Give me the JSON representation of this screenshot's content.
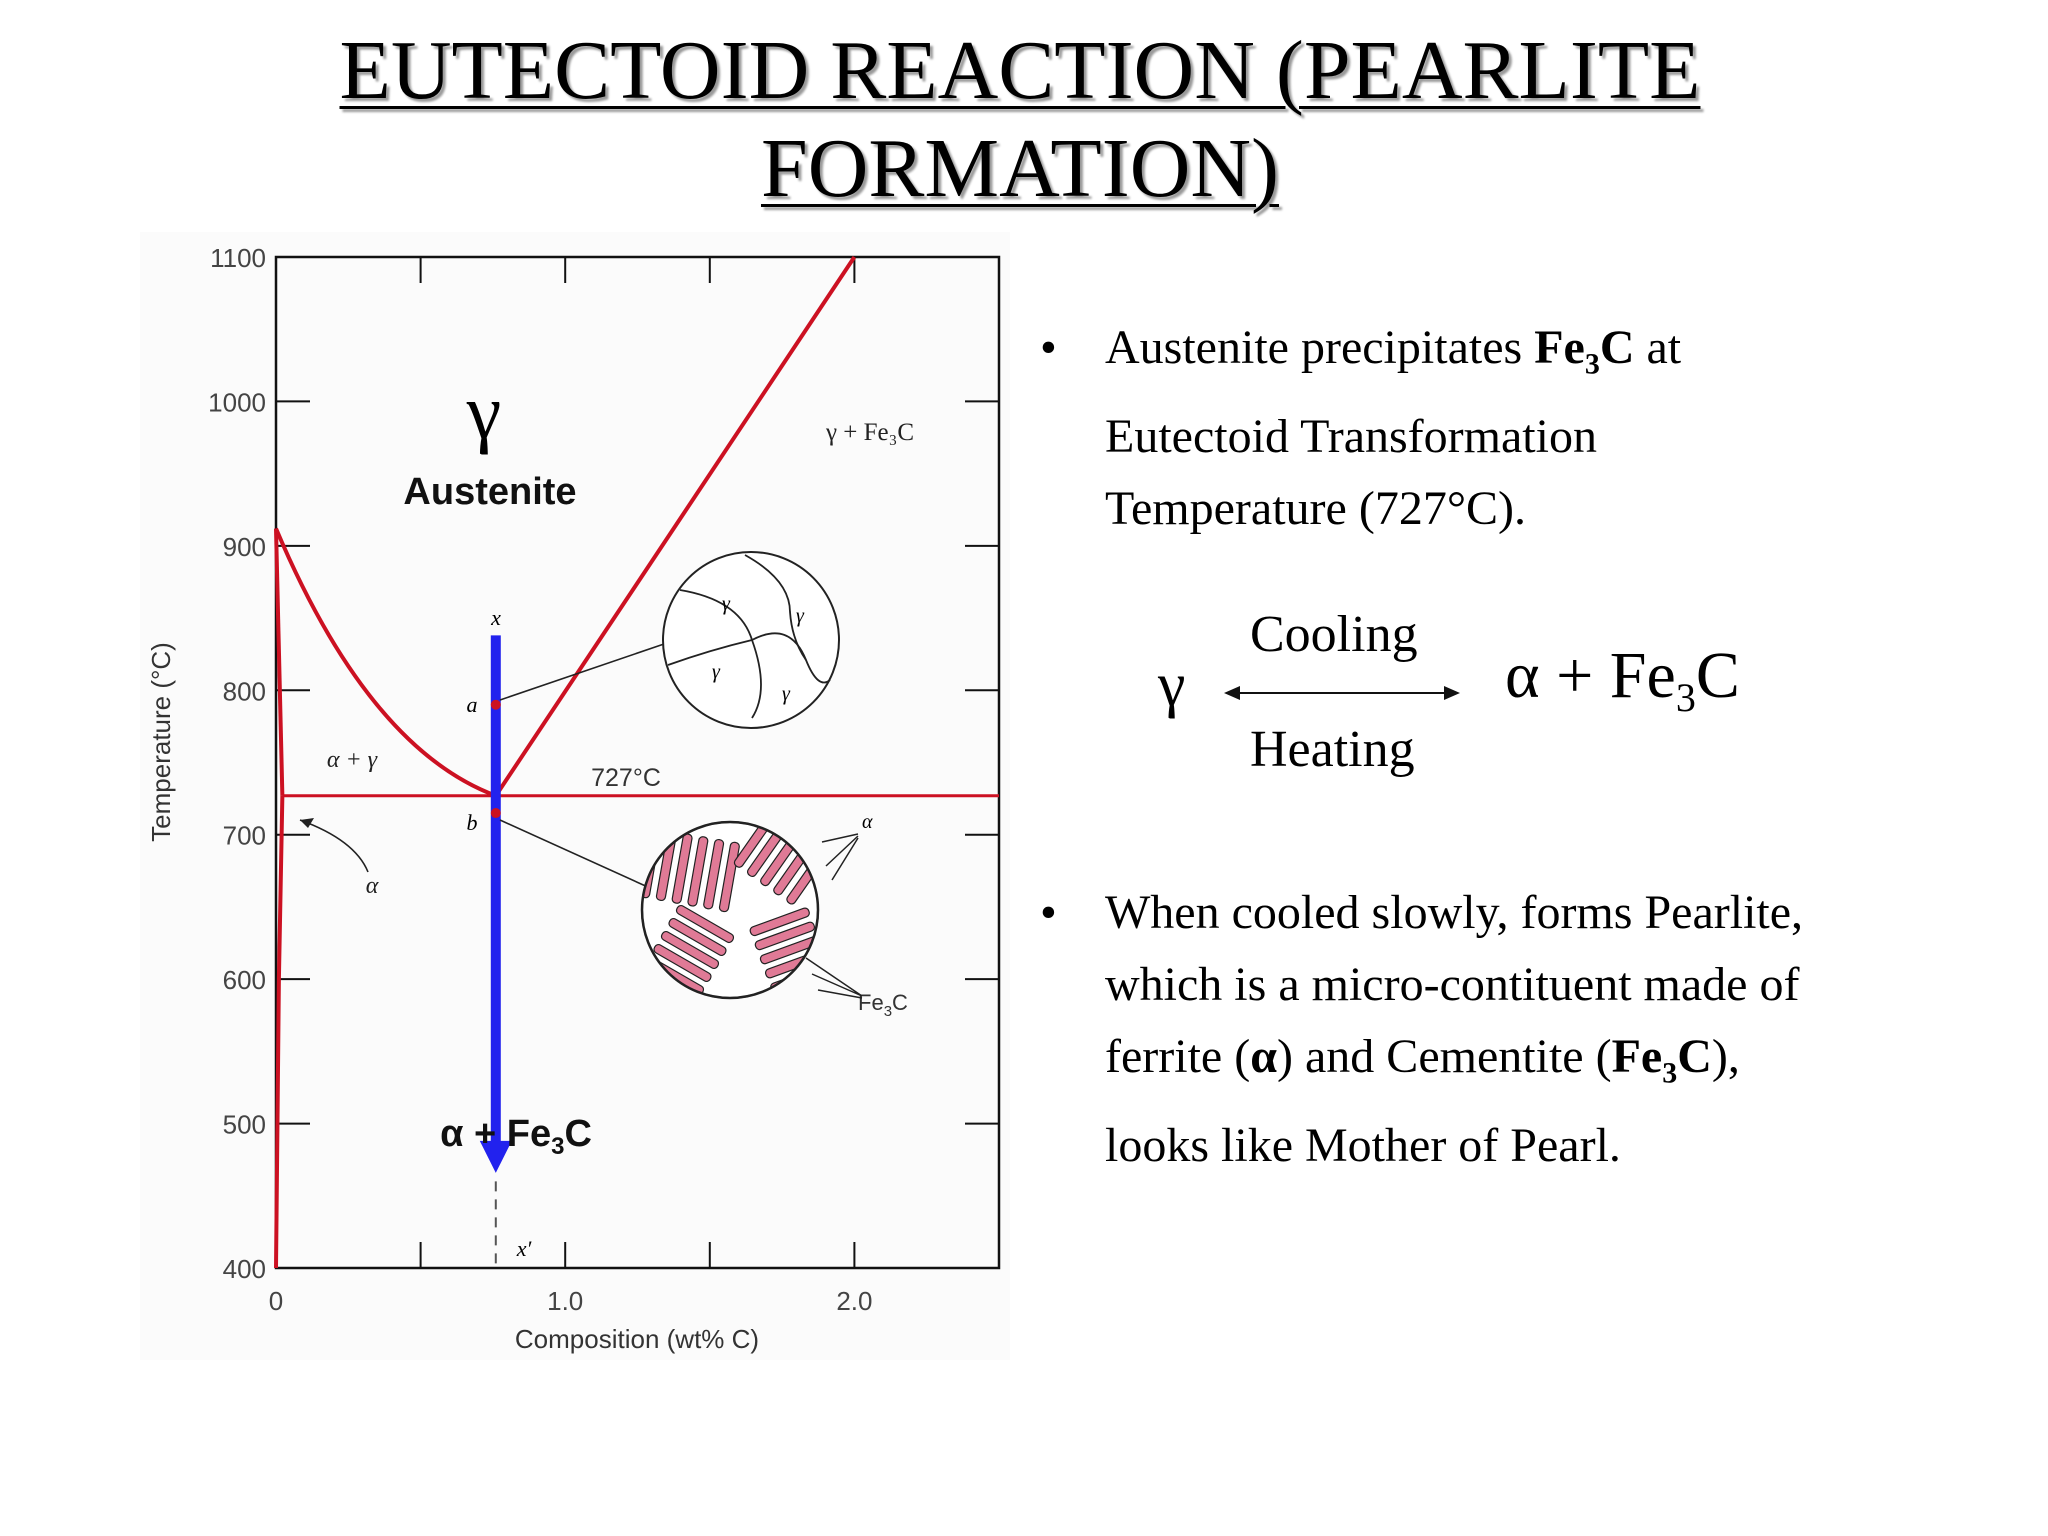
{
  "slide": {
    "title_line1": "EUTECTOID REACTION (PEARLITE",
    "title_line2": "FORMATION)"
  },
  "chart_data": {
    "type": "phase-diagram",
    "xlabel": "Composition (wt% C)",
    "ylabel": "Temperature (°C)",
    "xlim": [
      0,
      2.5
    ],
    "ylim": [
      400,
      1100
    ],
    "x_ticks": [
      {
        "value": 0,
        "label": "0"
      },
      {
        "value": 1.0,
        "label": "1.0"
      },
      {
        "value": 2.0,
        "label": "2.0"
      }
    ],
    "y_ticks": [
      {
        "value": 1100,
        "label": "1100"
      },
      {
        "value": 1000,
        "label": "1000"
      },
      {
        "value": 900,
        "label": "900"
      },
      {
        "value": 800,
        "label": "800"
      },
      {
        "value": 700,
        "label": "700"
      },
      {
        "value": 600,
        "label": "600"
      },
      {
        "value": 500,
        "label": "500"
      },
      {
        "value": 400,
        "label": "400"
      }
    ],
    "boundaries": [
      {
        "name": "gamma-solvus",
        "points": [
          [
            0,
            912
          ],
          [
            0.2,
            860
          ],
          [
            0.45,
            790
          ],
          [
            0.76,
            727
          ]
        ]
      },
      {
        "name": "cementite-solvus",
        "points": [
          [
            0.76,
            727
          ],
          [
            2.0,
            1100
          ]
        ]
      },
      {
        "name": "eutectoid-isotherm",
        "points": [
          [
            0.022,
            727
          ],
          [
            2.5,
            727
          ]
        ]
      },
      {
        "name": "alpha-gamma",
        "points": [
          [
            0,
            912
          ],
          [
            0.022,
            727
          ]
        ]
      },
      {
        "name": "alpha-solvus",
        "points": [
          [
            0.022,
            727
          ],
          [
            0.01,
            600
          ],
          [
            0,
            400
          ]
        ]
      }
    ],
    "cooling_path": {
      "x": 0.76,
      "from": 838,
      "to": 470
    },
    "points": [
      {
        "label": "a",
        "x": 0.76,
        "y": 790
      },
      {
        "label": "b",
        "x": 0.76,
        "y": 715
      },
      {
        "label": "x",
        "x": 0.76,
        "y": 840
      },
      {
        "label": "x′",
        "x": 0.76,
        "y": 415
      }
    ],
    "region_labels": {
      "gamma_symbol": "γ",
      "austenite": "Austenite",
      "gamma_fe3c": "γ + Fe₃C",
      "alpha_gamma": "α + γ",
      "alpha": "α",
      "alpha_fe3c": "α + Fe₃C",
      "eutectoid_temp": "727°C",
      "micro_alpha": "α",
      "micro_fe3c": "Fe₃C",
      "grain_gamma": "γ"
    },
    "colors": {
      "boundary": "#cc1122",
      "arrow": "#2222ee",
      "lamella": "#e07a96"
    }
  },
  "equation": {
    "reactant": "γ",
    "top": "Cooling",
    "bottom": "Heating",
    "product_alpha": "α + Fe",
    "product_sub": "3",
    "product_c": "C"
  },
  "bullets": [
    {
      "lines": [
        {
          "pre": "Austenite precipitates ",
          "bold": "Fe",
          "sub": "3",
          "boldend": "C",
          "post": " at"
        },
        {
          "pre": "Eutectoid Transformation"
        },
        {
          "pre": "Temperature (727°C)."
        }
      ]
    },
    {
      "lines": [
        {
          "pre": "When cooled slowly, forms Pearlite,"
        },
        {
          "pre": "which is a micro-contituent made of"
        },
        {
          "pre": "ferrite (",
          "bold": "α",
          "post": ") and Cementite ("
        },
        {
          "pre": "looks like Mother of Pearl."
        }
      ],
      "fe3c_tail": {
        "bold": "Fe",
        "sub": "3",
        "boldend": "C",
        "post": "),"
      }
    }
  ]
}
